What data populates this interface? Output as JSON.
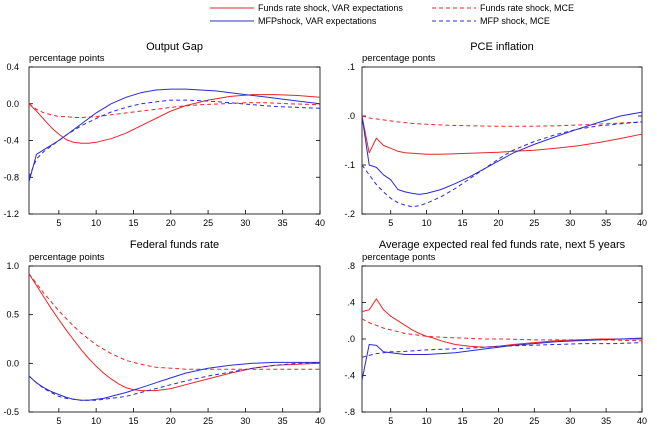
{
  "legend": [
    {
      "label": "Funds rate shock, VAR expectations",
      "color": "#e8262a",
      "dash": false
    },
    {
      "label": "Funds rate shock, MCE",
      "color": "#e8262a",
      "dash": true
    },
    {
      "label": "MFPshock, VAR expectations",
      "color": "#2b2bd6",
      "dash": false
    },
    {
      "label": "MFP shock, MCE",
      "color": "#2b2bd6",
      "dash": true
    }
  ],
  "chart_data": [
    {
      "type": "line",
      "title": "Output Gap",
      "ylabel": "percentage points",
      "xlim": [
        1,
        40
      ],
      "ylim": [
        -1.2,
        0.4
      ],
      "yticks": [
        0.4,
        0.0,
        -0.4,
        -0.8,
        -1.2
      ],
      "ytick_labels": [
        "0.4",
        "0.0",
        "-0.4",
        "-0.8",
        "-1.2"
      ],
      "xticks": [
        5,
        10,
        15,
        20,
        25,
        30,
        35,
        40
      ],
      "series": [
        {
          "name": "Funds rate shock, VAR expectations",
          "color": "#e8262a",
          "dash": false,
          "x": [
            1,
            2,
            3,
            4,
            5,
            6,
            7,
            8,
            9,
            10,
            12,
            14,
            16,
            18,
            20,
            22,
            25,
            28,
            31,
            34,
            37,
            40
          ],
          "y": [
            0.0,
            -0.08,
            -0.17,
            -0.26,
            -0.33,
            -0.39,
            -0.42,
            -0.43,
            -0.43,
            -0.42,
            -0.38,
            -0.32,
            -0.24,
            -0.16,
            -0.08,
            -0.02,
            0.04,
            0.08,
            0.1,
            0.1,
            0.09,
            0.07
          ]
        },
        {
          "name": "Funds rate shock, MCE",
          "color": "#e8262a",
          "dash": true,
          "x": [
            1,
            2,
            3,
            4,
            5,
            6,
            7,
            8,
            10,
            12,
            15,
            18,
            21,
            24,
            27,
            30,
            33,
            36,
            40
          ],
          "y": [
            0.0,
            -0.06,
            -0.1,
            -0.12,
            -0.14,
            -0.14,
            -0.15,
            -0.15,
            -0.14,
            -0.12,
            -0.09,
            -0.06,
            -0.03,
            -0.01,
            0.0,
            0.01,
            0.01,
            0.0,
            -0.01
          ]
        },
        {
          "name": "MFPshock, VAR expectations",
          "color": "#2b2bd6",
          "dash": false,
          "x": [
            1,
            2,
            3,
            4,
            5,
            6,
            7,
            8,
            10,
            12,
            14,
            16,
            18,
            20,
            22,
            24,
            26,
            28,
            30,
            33,
            36,
            40
          ],
          "y": [
            -0.85,
            -0.55,
            -0.5,
            -0.45,
            -0.4,
            -0.34,
            -0.28,
            -0.22,
            -0.1,
            0.0,
            0.07,
            0.12,
            0.15,
            0.16,
            0.16,
            0.15,
            0.14,
            0.12,
            0.1,
            0.07,
            0.04,
            0.0
          ]
        },
        {
          "name": "MFP shock, MCE",
          "color": "#2b2bd6",
          "dash": true,
          "x": [
            1,
            2,
            3,
            4,
            5,
            6,
            7,
            8,
            10,
            12,
            14,
            16,
            18,
            20,
            22,
            25,
            28,
            31,
            34,
            37,
            40
          ],
          "y": [
            -0.8,
            -0.6,
            -0.52,
            -0.46,
            -0.4,
            -0.34,
            -0.29,
            -0.24,
            -0.16,
            -0.09,
            -0.04,
            0.0,
            0.02,
            0.04,
            0.04,
            0.03,
            0.01,
            -0.01,
            -0.03,
            -0.04,
            -0.05
          ]
        }
      ]
    },
    {
      "type": "line",
      "title": "PCE inflation",
      "ylabel": "percentage ponts",
      "xlim": [
        1,
        40
      ],
      "ylim": [
        -0.2,
        0.1
      ],
      "yticks": [
        0.1,
        0.0,
        -0.1,
        -0.2
      ],
      "ytick_labels": [
        ".1",
        ".0",
        "-.1",
        "-.2"
      ],
      "xticks": [
        5,
        10,
        15,
        20,
        25,
        30,
        35,
        40
      ],
      "series": [
        {
          "name": "Funds rate shock, VAR expectations",
          "color": "#e8262a",
          "dash": false,
          "x": [
            1,
            2,
            3,
            4,
            5,
            6,
            7,
            8,
            10,
            12,
            14,
            16,
            18,
            20,
            22,
            25,
            28,
            31,
            34,
            37,
            40
          ],
          "y": [
            0.0,
            -0.075,
            -0.045,
            -0.06,
            -0.066,
            -0.072,
            -0.075,
            -0.076,
            -0.078,
            -0.078,
            -0.077,
            -0.076,
            -0.075,
            -0.074,
            -0.072,
            -0.07,
            -0.066,
            -0.061,
            -0.054,
            -0.046,
            -0.037
          ]
        },
        {
          "name": "Funds rate shock, MCE",
          "color": "#e8262a",
          "dash": true,
          "x": [
            1,
            2,
            3,
            4,
            5,
            6,
            8,
            10,
            13,
            16,
            20,
            24,
            28,
            32,
            36,
            40
          ],
          "y": [
            0.0,
            -0.004,
            -0.006,
            -0.008,
            -0.01,
            -0.012,
            -0.015,
            -0.017,
            -0.019,
            -0.02,
            -0.021,
            -0.021,
            -0.02,
            -0.018,
            -0.015,
            -0.012
          ]
        },
        {
          "name": "MFPshock, VAR expectations",
          "color": "#2b2bd6",
          "dash": false,
          "x": [
            1,
            2,
            3,
            4,
            5,
            6,
            7,
            8,
            9,
            10,
            12,
            14,
            16,
            18,
            20,
            22,
            25,
            28,
            31,
            34,
            37,
            40
          ],
          "y": [
            0.0,
            -0.1,
            -0.105,
            -0.12,
            -0.13,
            -0.15,
            -0.155,
            -0.158,
            -0.16,
            -0.158,
            -0.15,
            -0.138,
            -0.124,
            -0.108,
            -0.092,
            -0.076,
            -0.058,
            -0.042,
            -0.027,
            -0.013,
            0.0,
            0.008
          ]
        },
        {
          "name": "MFP shock, MCE",
          "color": "#2b2bd6",
          "dash": true,
          "x": [
            1,
            2,
            3,
            4,
            5,
            6,
            7,
            8,
            9,
            10,
            12,
            14,
            16,
            18,
            20,
            22,
            25,
            28,
            31,
            34,
            37,
            40
          ],
          "y": [
            -0.1,
            -0.12,
            -0.14,
            -0.155,
            -0.168,
            -0.177,
            -0.182,
            -0.185,
            -0.183,
            -0.178,
            -0.165,
            -0.148,
            -0.128,
            -0.108,
            -0.088,
            -0.07,
            -0.052,
            -0.038,
            -0.027,
            -0.02,
            -0.016,
            -0.012
          ]
        }
      ]
    },
    {
      "type": "line",
      "title": "Federal funds rate",
      "ylabel": "percentage points",
      "xlim": [
        1,
        40
      ],
      "ylim": [
        -0.5,
        1.0
      ],
      "yticks": [
        1.0,
        0.5,
        0.0,
        -0.5
      ],
      "ytick_labels": [
        "1.0",
        "0.5",
        "0.0",
        "-0.5"
      ],
      "xticks": [
        5,
        10,
        15,
        20,
        25,
        30,
        35,
        40
      ],
      "series": [
        {
          "name": "Funds rate shock, VAR expectations",
          "color": "#e8262a",
          "dash": false,
          "x": [
            1,
            2,
            3,
            4,
            5,
            6,
            7,
            8,
            9,
            10,
            11,
            12,
            13,
            14,
            15,
            16,
            18,
            20,
            22,
            25,
            28,
            31,
            34,
            37,
            40
          ],
          "y": [
            0.92,
            0.8,
            0.68,
            0.56,
            0.45,
            0.34,
            0.24,
            0.14,
            0.05,
            -0.03,
            -0.1,
            -0.16,
            -0.21,
            -0.25,
            -0.27,
            -0.28,
            -0.28,
            -0.26,
            -0.22,
            -0.16,
            -0.1,
            -0.05,
            -0.02,
            -0.01,
            0.0
          ]
        },
        {
          "name": "Funds rate shock, MCE",
          "color": "#e8262a",
          "dash": true,
          "x": [
            1,
            2,
            3,
            4,
            5,
            6,
            7,
            8,
            9,
            10,
            12,
            14,
            16,
            18,
            20,
            22,
            25,
            28,
            31,
            34,
            37,
            40
          ],
          "y": [
            0.92,
            0.82,
            0.72,
            0.63,
            0.54,
            0.46,
            0.38,
            0.31,
            0.25,
            0.19,
            0.1,
            0.03,
            -0.01,
            -0.04,
            -0.05,
            -0.06,
            -0.06,
            -0.06,
            -0.06,
            -0.06,
            -0.06,
            -0.06
          ]
        },
        {
          "name": "MFPshock, VAR expectations",
          "color": "#2b2bd6",
          "dash": false,
          "x": [
            1,
            2,
            3,
            4,
            5,
            6,
            7,
            8,
            9,
            10,
            11,
            12,
            14,
            16,
            18,
            20,
            22,
            25,
            28,
            31,
            34,
            37,
            40
          ],
          "y": [
            -0.13,
            -0.2,
            -0.25,
            -0.29,
            -0.32,
            -0.35,
            -0.37,
            -0.38,
            -0.38,
            -0.37,
            -0.36,
            -0.34,
            -0.3,
            -0.25,
            -0.2,
            -0.15,
            -0.1,
            -0.05,
            -0.02,
            0.0,
            0.01,
            0.01,
            0.01
          ]
        },
        {
          "name": "MFP shock, MCE",
          "color": "#2b2bd6",
          "dash": true,
          "x": [
            1,
            2,
            3,
            4,
            5,
            6,
            7,
            8,
            9,
            10,
            12,
            14,
            16,
            18,
            20,
            22,
            25,
            28,
            31,
            34,
            37,
            40
          ],
          "y": [
            -0.13,
            -0.2,
            -0.26,
            -0.3,
            -0.34,
            -0.36,
            -0.37,
            -0.38,
            -0.38,
            -0.38,
            -0.36,
            -0.34,
            -0.3,
            -0.26,
            -0.22,
            -0.18,
            -0.13,
            -0.09,
            -0.05,
            -0.02,
            0.0,
            0.01
          ]
        }
      ]
    },
    {
      "type": "line",
      "title": "Average expected real fed funds rate, next 5 years",
      "ylabel": "percentage ponts",
      "xlim": [
        1,
        40
      ],
      "ylim": [
        -0.8,
        0.8
      ],
      "yticks": [
        0.8,
        0.4,
        0.0,
        -0.4,
        -0.8
      ],
      "ytick_labels": [
        ".8",
        ".4",
        ".0",
        "-.4",
        "-.8"
      ],
      "xticks": [
        5,
        10,
        15,
        20,
        25,
        30,
        35,
        40
      ],
      "series": [
        {
          "name": "Funds rate shock, VAR expectations",
          "color": "#e8262a",
          "dash": false,
          "x": [
            1,
            2,
            3,
            4,
            5,
            6,
            7,
            8,
            9,
            10,
            11,
            12,
            14,
            16,
            18,
            20,
            22,
            25,
            28,
            31,
            34,
            37,
            40
          ],
          "y": [
            0.3,
            0.32,
            0.44,
            0.32,
            0.25,
            0.2,
            0.15,
            0.1,
            0.06,
            0.03,
            0.01,
            -0.02,
            -0.06,
            -0.08,
            -0.09,
            -0.08,
            -0.06,
            -0.04,
            -0.02,
            -0.01,
            0.0,
            0.0,
            0.0
          ]
        },
        {
          "name": "Funds rate shock, MCE",
          "color": "#e8262a",
          "dash": true,
          "x": [
            1,
            2,
            3,
            4,
            5,
            6,
            7,
            8,
            10,
            12,
            15,
            18,
            21,
            25,
            30,
            35,
            40
          ],
          "y": [
            0.22,
            0.18,
            0.15,
            0.12,
            0.1,
            0.08,
            0.06,
            0.05,
            0.03,
            0.02,
            0.01,
            0.0,
            0.0,
            -0.01,
            -0.01,
            -0.01,
            -0.02
          ]
        },
        {
          "name": "MFPshock, VAR expectations",
          "color": "#2b2bd6",
          "dash": false,
          "x": [
            1,
            2,
            3,
            4,
            5,
            6,
            7,
            8,
            10,
            12,
            14,
            16,
            18,
            20,
            22,
            25,
            28,
            31,
            34,
            37,
            40
          ],
          "y": [
            -0.45,
            -0.06,
            -0.07,
            -0.14,
            -0.15,
            -0.16,
            -0.17,
            -0.17,
            -0.17,
            -0.16,
            -0.15,
            -0.13,
            -0.11,
            -0.09,
            -0.07,
            -0.05,
            -0.03,
            -0.02,
            -0.01,
            0.0,
            0.01
          ]
        },
        {
          "name": "MFP shock, MCE",
          "color": "#2b2bd6",
          "dash": true,
          "x": [
            1,
            2,
            3,
            4,
            5,
            6,
            8,
            10,
            13,
            16,
            20,
            24,
            28,
            32,
            36,
            40
          ],
          "y": [
            -0.2,
            -0.18,
            -0.16,
            -0.15,
            -0.14,
            -0.14,
            -0.13,
            -0.12,
            -0.11,
            -0.1,
            -0.08,
            -0.07,
            -0.06,
            -0.05,
            -0.05,
            -0.04
          ]
        }
      ]
    }
  ]
}
